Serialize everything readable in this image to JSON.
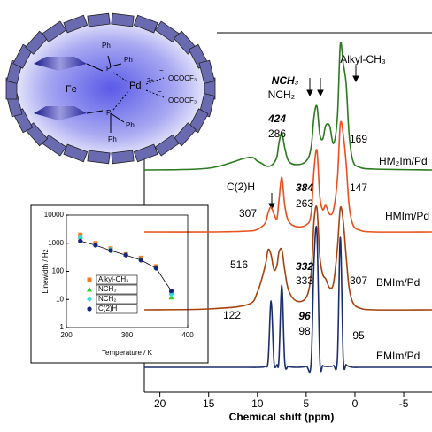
{
  "chart_data": [
    {
      "type": "line",
      "xlabel": "Chemical shift (ppm)",
      "xlim": [
        21.6,
        -7.9
      ],
      "xticks": [
        20,
        15,
        10,
        5,
        0,
        -5
      ],
      "x": [
        21.6,
        15,
        11,
        10,
        9.2,
        8.9,
        8.6,
        8.3,
        8.0,
        7.8,
        7.5,
        7.2,
        6.8,
        6.0,
        5.0,
        4.5,
        4.2,
        3.9,
        3.6,
        3.3,
        3.0,
        2.6,
        2.2,
        1.8,
        1.5,
        1.2,
        0.9,
        0.6,
        0.2,
        -0.5,
        -2,
        -7.9
      ],
      "series": [
        {
          "name": "HM₂Im/Pd",
          "color": "#2a7a1e",
          "values": [
            0,
            2,
            14,
            10,
            5,
            4,
            5,
            8,
            15,
            30,
            42,
            25,
            10,
            6,
            10,
            25,
            60,
            72,
            40,
            35,
            50,
            50,
            30,
            60,
            142,
            120,
            97,
            40,
            10,
            3,
            1,
            0
          ]
        },
        {
          "name": "HMIm/Pd",
          "color": "#e8501e",
          "values": [
            0,
            0,
            1,
            3,
            10,
            22,
            28,
            20,
            15,
            35,
            62,
            30,
            12,
            6,
            8,
            20,
            70,
            92,
            40,
            25,
            30,
            20,
            25,
            60,
            122,
            110,
            77,
            30,
            8,
            2,
            0,
            0
          ]
        },
        {
          "name": "BMIm/Pd",
          "color": "#a5420f",
          "values": [
            0,
            1,
            6,
            20,
            50,
            68,
            62,
            45,
            50,
            65,
            68,
            45,
            22,
            10,
            14,
            40,
            100,
            115,
            60,
            40,
            35,
            25,
            30,
            70,
            115,
            100,
            60,
            25,
            8,
            2,
            0,
            0
          ]
        },
        {
          "name": "EMIm/Pd",
          "color": "#1a2e6b",
          "values": [
            0,
            0,
            0,
            0,
            1,
            8,
            75,
            6,
            3,
            8,
            93,
            6,
            1,
            0,
            1,
            4,
            120,
            153,
            8,
            2,
            1,
            1,
            2,
            10,
            147,
            10,
            3,
            1,
            0,
            0,
            0,
            0
          ]
        }
      ],
      "annotations": [
        "NCH₃",
        "NCH₂",
        "Alkyl-CH₃",
        "424",
        "286",
        "169",
        "C(2)H",
        "384",
        "263",
        "147",
        "307",
        "516",
        "332",
        "333",
        "307",
        "122",
        "96",
        "98",
        "95"
      ]
    },
    {
      "type": "scatter",
      "xlabel": "Temperature / K",
      "ylabel": "Linewidth / Hz",
      "xlim": [
        200,
        400
      ],
      "xticks": [
        200,
        300,
        400
      ],
      "ylim": [
        1,
        10000
      ],
      "yticks": [
        1,
        10,
        100,
        1000,
        10000
      ],
      "log_y": true,
      "x": [
        223,
        248,
        273,
        298,
        323,
        348,
        373
      ],
      "series": [
        {
          "name": "Alkyl-CH₃",
          "color": "#f07a2a",
          "marker": "square",
          "values": [
            2000,
            1000,
            650,
            400,
            300,
            150,
            18
          ]
        },
        {
          "name": "NCH₃",
          "color": "#33cc33",
          "marker": "triangle",
          "values": [
            1700,
            950,
            600,
            400,
            280,
            140,
            12
          ]
        },
        {
          "name": "NCH₂",
          "color": "#33dddd",
          "marker": "diamond",
          "values": [
            1600,
            900,
            600,
            380,
            260,
            130,
            15
          ]
        },
        {
          "name": "C(2)H",
          "color": "#1a237e",
          "marker": "circle",
          "line": true,
          "values": [
            1200,
            850,
            550,
            380,
            250,
            130,
            20
          ]
        }
      ]
    }
  ],
  "structure": {
    "labels": [
      "Ph",
      "Ph",
      "P",
      "Pd",
      "2+",
      "−",
      "OCOCF₃",
      "−",
      "OCOCF₃",
      "Fe",
      "P",
      "Ph",
      "Ph"
    ]
  }
}
